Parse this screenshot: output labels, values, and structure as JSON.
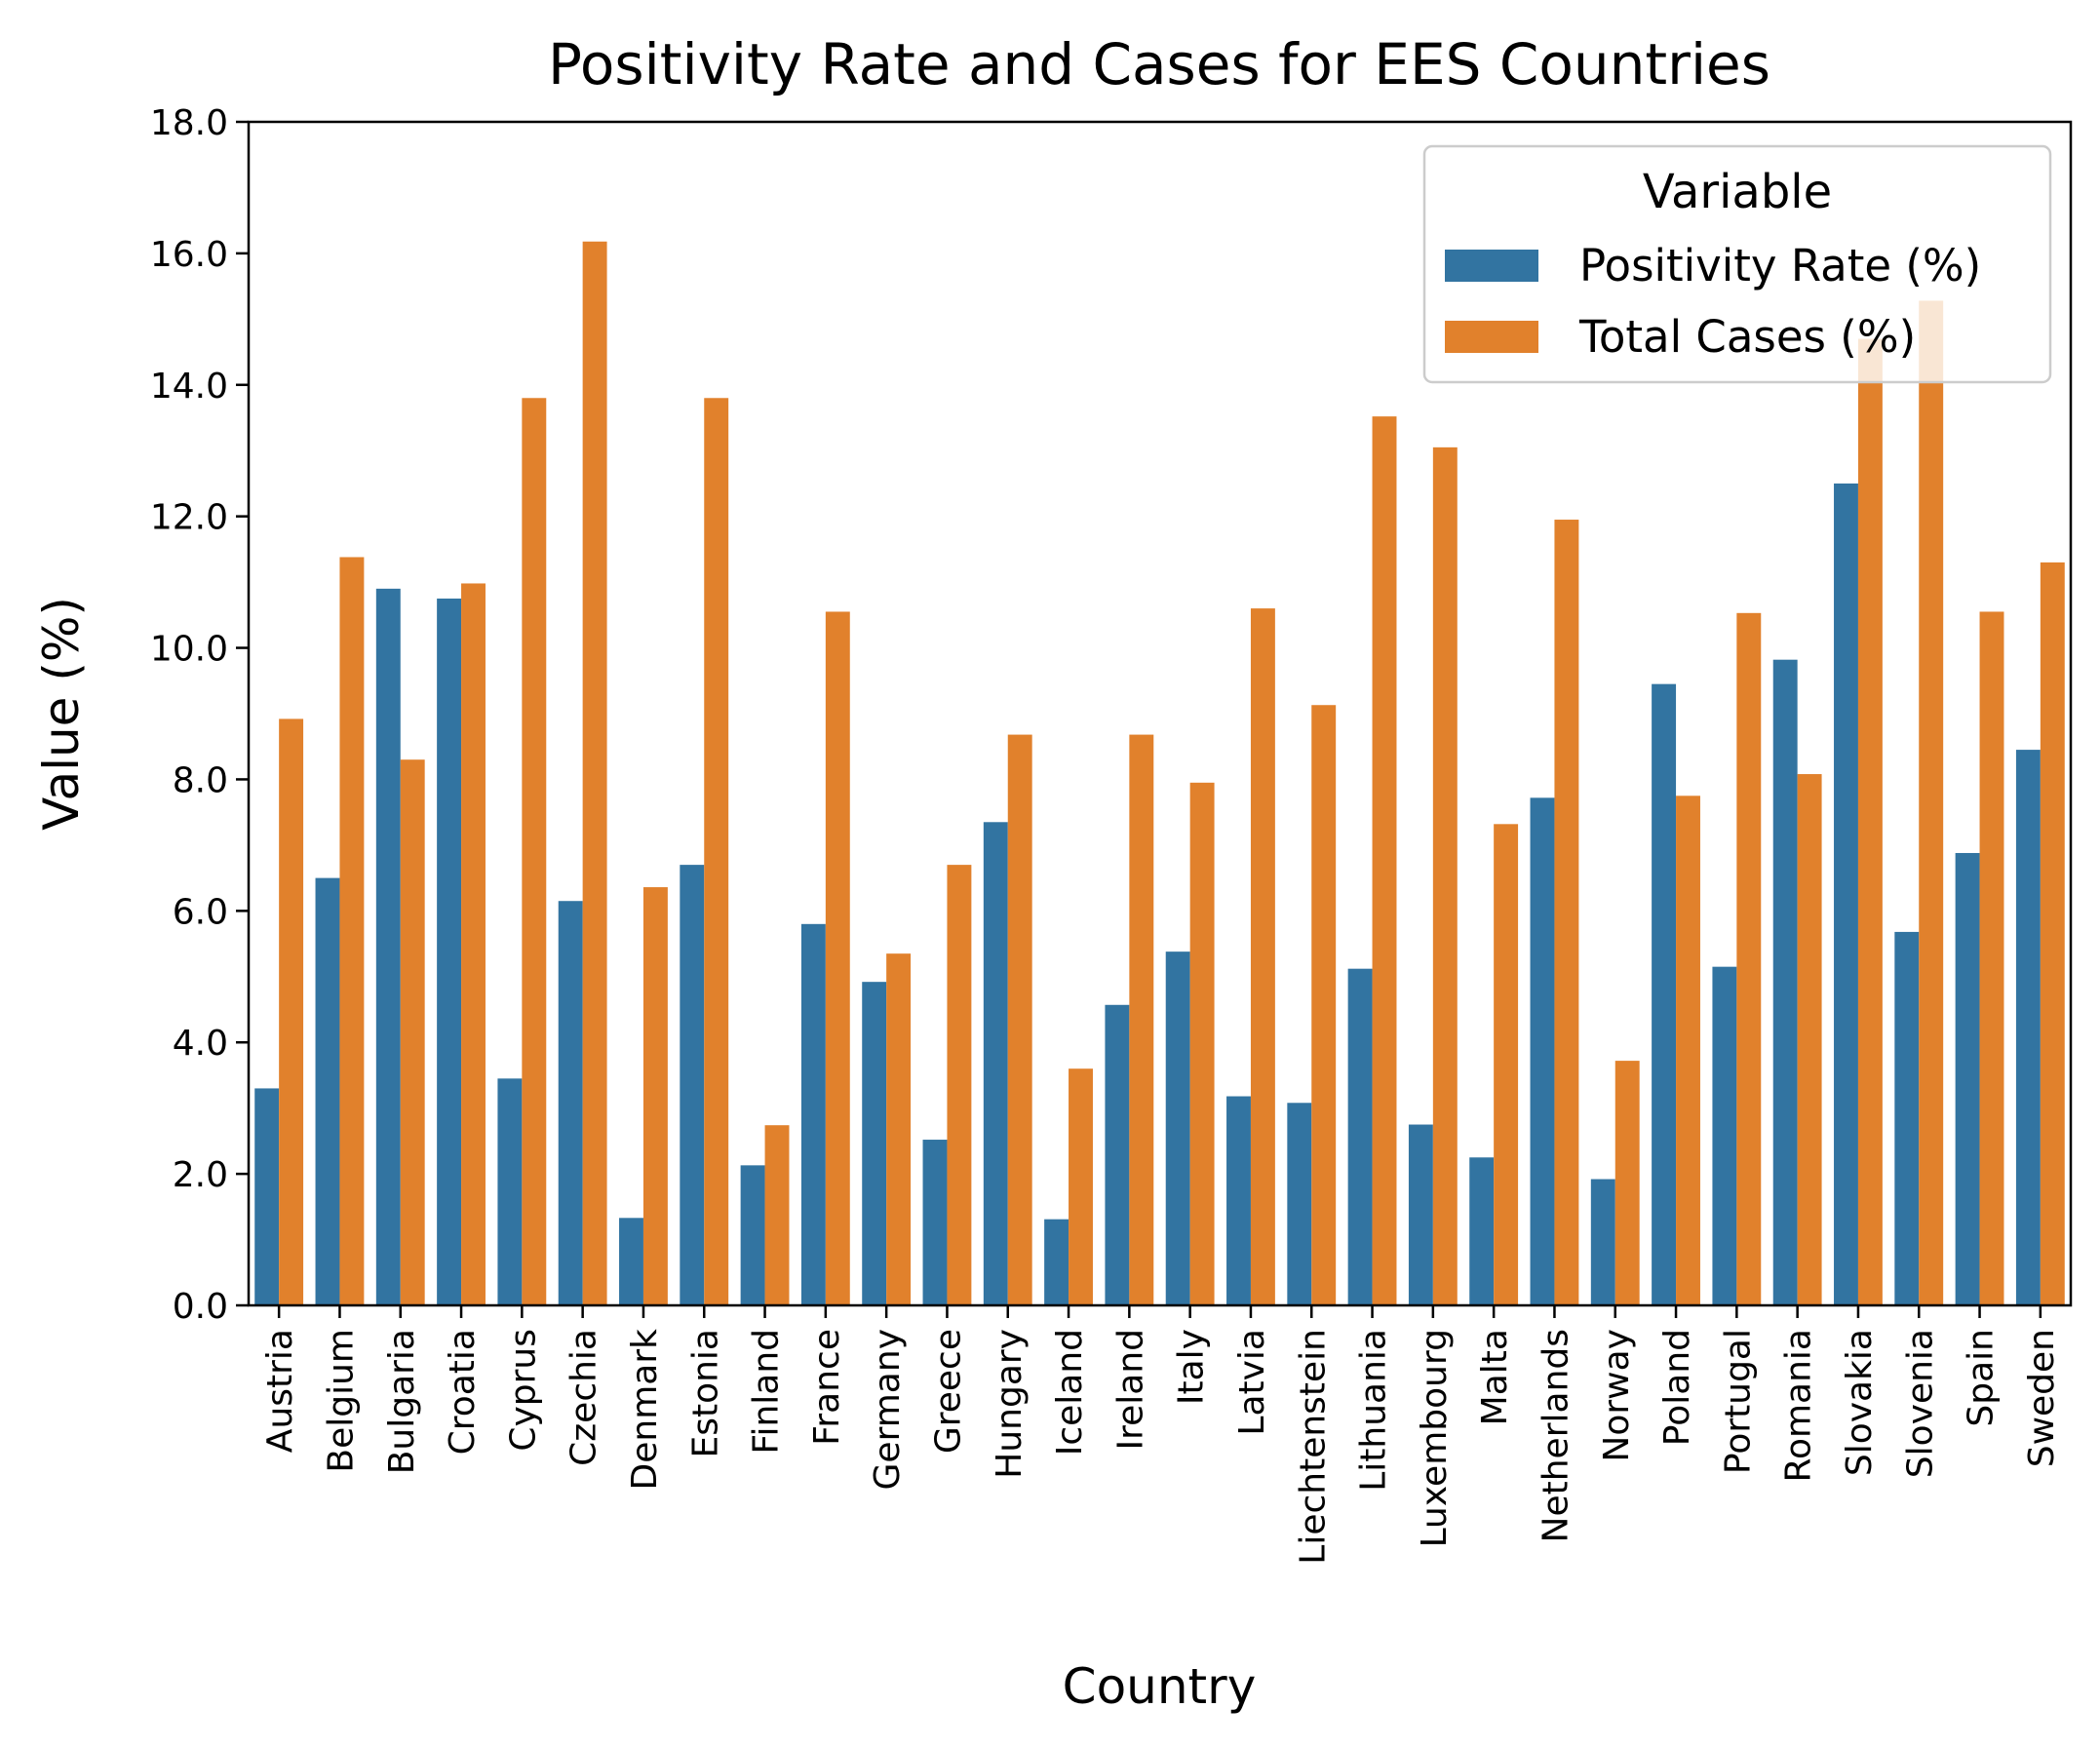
{
  "chart_data": {
    "type": "bar",
    "title": "Positivity Rate and Cases for EES Countries",
    "xlabel": "Country",
    "ylabel": "Value (%)",
    "ylim": [
      0,
      18
    ],
    "yticks": [
      "0.0",
      "2.0",
      "4.0",
      "6.0",
      "8.0",
      "10.0",
      "12.0",
      "14.0",
      "16.0",
      "18.0"
    ],
    "grid": false,
    "legend": {
      "title": "Variable",
      "placement": "top-right"
    },
    "categories": [
      "Austria",
      "Belgium",
      "Bulgaria",
      "Croatia",
      "Cyprus",
      "Czechia",
      "Denmark",
      "Estonia",
      "Finland",
      "France",
      "Germany",
      "Greece",
      "Hungary",
      "Iceland",
      "Ireland",
      "Italy",
      "Latvia",
      "Liechtenstein",
      "Lithuania",
      "Luxembourg",
      "Malta",
      "Netherlands",
      "Norway",
      "Poland",
      "Portugal",
      "Romania",
      "Slovakia",
      "Slovenia",
      "Spain",
      "Sweden"
    ],
    "series": [
      {
        "name": "Positivity Rate (%)",
        "color": "#3274a1",
        "values": [
          3.3,
          6.5,
          10.9,
          10.75,
          3.45,
          6.15,
          1.33,
          6.7,
          2.13,
          5.8,
          4.92,
          2.52,
          7.35,
          1.31,
          4.57,
          5.38,
          3.18,
          3.08,
          5.12,
          2.75,
          2.25,
          7.72,
          1.92,
          9.45,
          5.15,
          9.82,
          12.5,
          5.68,
          6.88,
          8.45
        ]
      },
      {
        "name": "Total Cases (%)",
        "color": "#e1812c",
        "values": [
          8.92,
          11.38,
          8.3,
          10.98,
          13.8,
          16.18,
          6.36,
          13.8,
          2.74,
          10.55,
          5.35,
          6.7,
          8.68,
          3.6,
          8.68,
          7.95,
          10.6,
          9.13,
          13.52,
          13.05,
          7.32,
          11.95,
          3.72,
          7.75,
          10.53,
          8.08,
          14.7,
          15.28,
          10.55,
          11.3
        ]
      }
    ]
  }
}
